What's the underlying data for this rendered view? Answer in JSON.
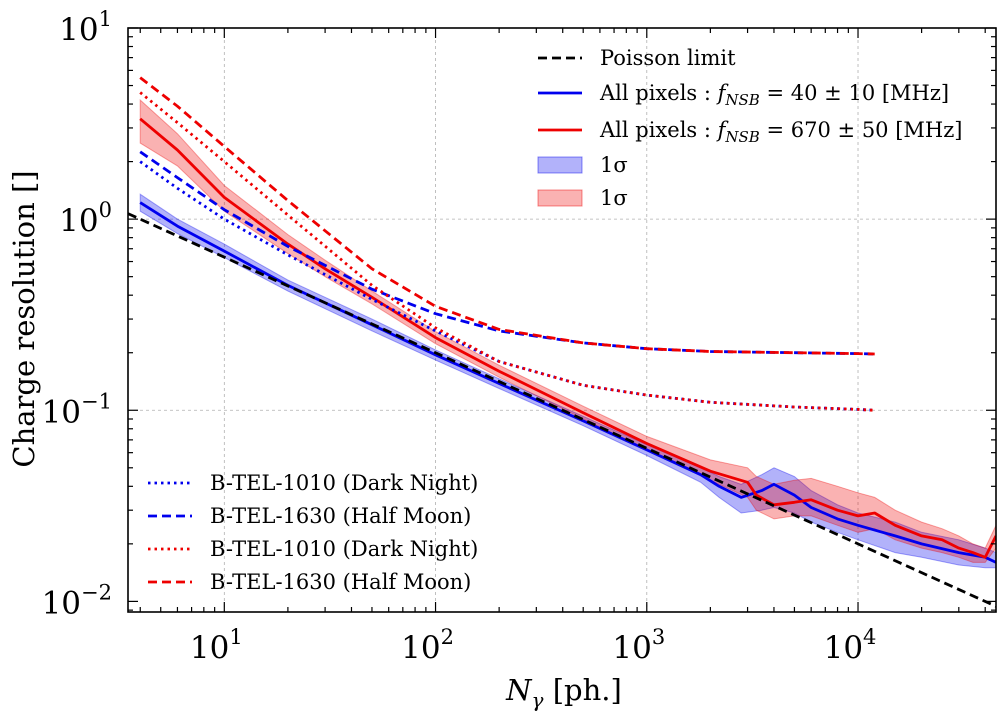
{
  "chart_data": {
    "type": "line",
    "xscale": "log",
    "yscale": "log",
    "xlim": [
      3.5,
      45000
    ],
    "ylim": [
      0.0088,
      10
    ],
    "grid": true,
    "xlabel": {
      "prefix": "N",
      "sub": "γ",
      "suffix": " [ph.]"
    },
    "ylabel": "Charge resolution []",
    "xticks": [
      {
        "base": "10",
        "exp": "1"
      },
      {
        "base": "10",
        "exp": "2"
      },
      {
        "base": "10",
        "exp": "3"
      },
      {
        "base": "10",
        "exp": "4"
      }
    ],
    "yticks": [
      {
        "base": "10",
        "exp": "−2"
      },
      {
        "base": "10",
        "exp": "−1"
      },
      {
        "base": "10",
        "exp": "0"
      },
      {
        "base": "10",
        "exp": "1"
      }
    ],
    "legend_upper": {
      "placement": "top-right",
      "entries": [
        {
          "label": "Poisson limit",
          "color": "#000000",
          "style": "dashed"
        },
        {
          "label_prefix": "All pixels : ",
          "label_var": "f",
          "label_sub": "NSB",
          "label_suffix": " =  40 ± 10 [MHz]",
          "color": "#0000ee",
          "style": "solid"
        },
        {
          "label_prefix": "All pixels : ",
          "label_var": "f",
          "label_sub": "NSB",
          "label_suffix": " =  670 ± 50 [MHz]",
          "color": "#ee0000",
          "style": "solid"
        },
        {
          "label": "1σ",
          "color": "#0000ee",
          "style": "band"
        },
        {
          "label": "1σ",
          "color": "#ee0000",
          "style": "band"
        }
      ]
    },
    "legend_lower": {
      "placement": "lower-left",
      "entries": [
        {
          "label": "B-TEL-1010 (Dark Night)",
          "color": "#0000ee",
          "style": "dotted"
        },
        {
          "label": "B-TEL-1630 (Half Moon)",
          "color": "#0000ee",
          "style": "dashed"
        },
        {
          "label": "B-TEL-1010 (Dark Night)",
          "color": "#ee0000",
          "style": "dotted"
        },
        {
          "label": "B-TEL-1630 (Half Moon)",
          "color": "#ee0000",
          "style": "dashed"
        }
      ]
    },
    "series": [
      {
        "name": "All pixels f_NSB = 40 ± 10 [MHz]",
        "color": "#0000ee",
        "x": [
          4,
          6,
          10,
          20,
          50,
          100,
          200,
          500,
          1000,
          1800,
          2200,
          2800,
          3500,
          4000,
          5000,
          6000,
          8000,
          10000,
          15000,
          20000,
          30000,
          40000,
          45000
        ],
        "y": [
          1.22,
          0.92,
          0.68,
          0.45,
          0.28,
          0.195,
          0.138,
          0.088,
          0.062,
          0.046,
          0.04,
          0.035,
          0.038,
          0.041,
          0.036,
          0.031,
          0.027,
          0.025,
          0.022,
          0.02,
          0.018,
          0.017,
          0.016
        ],
        "band_low": [
          1.1,
          0.84,
          0.63,
          0.42,
          0.26,
          0.183,
          0.13,
          0.083,
          0.058,
          0.042,
          0.035,
          0.029,
          0.03,
          0.031,
          0.029,
          0.026,
          0.023,
          0.021,
          0.018,
          0.017,
          0.0155,
          0.015,
          0.015
        ],
        "band_high": [
          1.35,
          1.0,
          0.74,
          0.48,
          0.3,
          0.207,
          0.146,
          0.093,
          0.066,
          0.05,
          0.045,
          0.041,
          0.046,
          0.05,
          0.045,
          0.038,
          0.032,
          0.029,
          0.026,
          0.023,
          0.021,
          0.019,
          0.018
        ]
      },
      {
        "name": "All pixels f_NSB = 670 ± 50 [MHz]",
        "color": "#ee0000",
        "x": [
          4,
          6,
          10,
          20,
          30,
          50,
          100,
          200,
          500,
          1000,
          2000,
          3000,
          3300,
          4000,
          5000,
          6000,
          8000,
          10000,
          12000,
          15000,
          20000,
          25000,
          30000,
          35000,
          40000,
          45000
        ],
        "y": [
          3.35,
          2.3,
          1.3,
          0.74,
          0.55,
          0.39,
          0.24,
          0.16,
          0.097,
          0.067,
          0.048,
          0.042,
          0.036,
          0.032,
          0.033,
          0.034,
          0.03,
          0.028,
          0.029,
          0.025,
          0.022,
          0.021,
          0.019,
          0.018,
          0.017,
          0.022
        ],
        "band_low": [
          2.5,
          1.9,
          1.1,
          0.66,
          0.5,
          0.36,
          0.223,
          0.149,
          0.09,
          0.062,
          0.043,
          0.035,
          0.03,
          0.027,
          0.028,
          0.028,
          0.025,
          0.023,
          0.024,
          0.021,
          0.019,
          0.018,
          0.017,
          0.016,
          0.016,
          0.019
        ],
        "band_high": [
          4.2,
          2.8,
          1.5,
          0.83,
          0.61,
          0.42,
          0.258,
          0.172,
          0.105,
          0.073,
          0.055,
          0.05,
          0.045,
          0.041,
          0.043,
          0.044,
          0.04,
          0.037,
          0.035,
          0.03,
          0.026,
          0.024,
          0.022,
          0.02,
          0.019,
          0.025
        ]
      },
      {
        "name": "Poisson limit",
        "color": "#000000",
        "style": "dashed",
        "x": [
          3.5,
          45000
        ],
        "y": [
          1.069,
          0.00943
        ]
      },
      {
        "name": "B-TEL-1010 (Dark Night) blue",
        "color": "#0000ee",
        "style": "dotted",
        "x": [
          4,
          6,
          10,
          20,
          50,
          100,
          200,
          500,
          1000,
          2000,
          5000,
          10000,
          12000
        ],
        "y": [
          2.0,
          1.45,
          1.0,
          0.65,
          0.38,
          0.26,
          0.18,
          0.135,
          0.12,
          0.11,
          0.104,
          0.101,
          0.1
        ]
      },
      {
        "name": "B-TEL-1630 (Half Moon) blue",
        "color": "#0000ee",
        "style": "dashed",
        "x": [
          4,
          6,
          10,
          20,
          50,
          100,
          200,
          500,
          1000,
          2000,
          5000,
          10000,
          12000
        ],
        "y": [
          2.25,
          1.65,
          1.12,
          0.72,
          0.43,
          0.32,
          0.26,
          0.225,
          0.21,
          0.203,
          0.2,
          0.198,
          0.197
        ]
      },
      {
        "name": "B-TEL-1010 (Dark Night) red",
        "color": "#ee0000",
        "style": "dotted",
        "x": [
          4,
          6,
          10,
          20,
          50,
          100,
          200,
          500,
          1000,
          2000,
          5000,
          10000,
          12000
        ],
        "y": [
          4.6,
          3.2,
          2.0,
          1.05,
          0.45,
          0.27,
          0.18,
          0.135,
          0.12,
          0.11,
          0.104,
          0.101,
          0.1
        ]
      },
      {
        "name": "B-TEL-1630 (Half Moon) red",
        "color": "#ee0000",
        "style": "dashed",
        "x": [
          4,
          6,
          10,
          20,
          50,
          100,
          200,
          500,
          1000,
          2000,
          5000,
          10000,
          12000
        ],
        "y": [
          5.5,
          3.9,
          2.4,
          1.25,
          0.55,
          0.35,
          0.265,
          0.225,
          0.21,
          0.203,
          0.2,
          0.198,
          0.197
        ]
      }
    ]
  }
}
